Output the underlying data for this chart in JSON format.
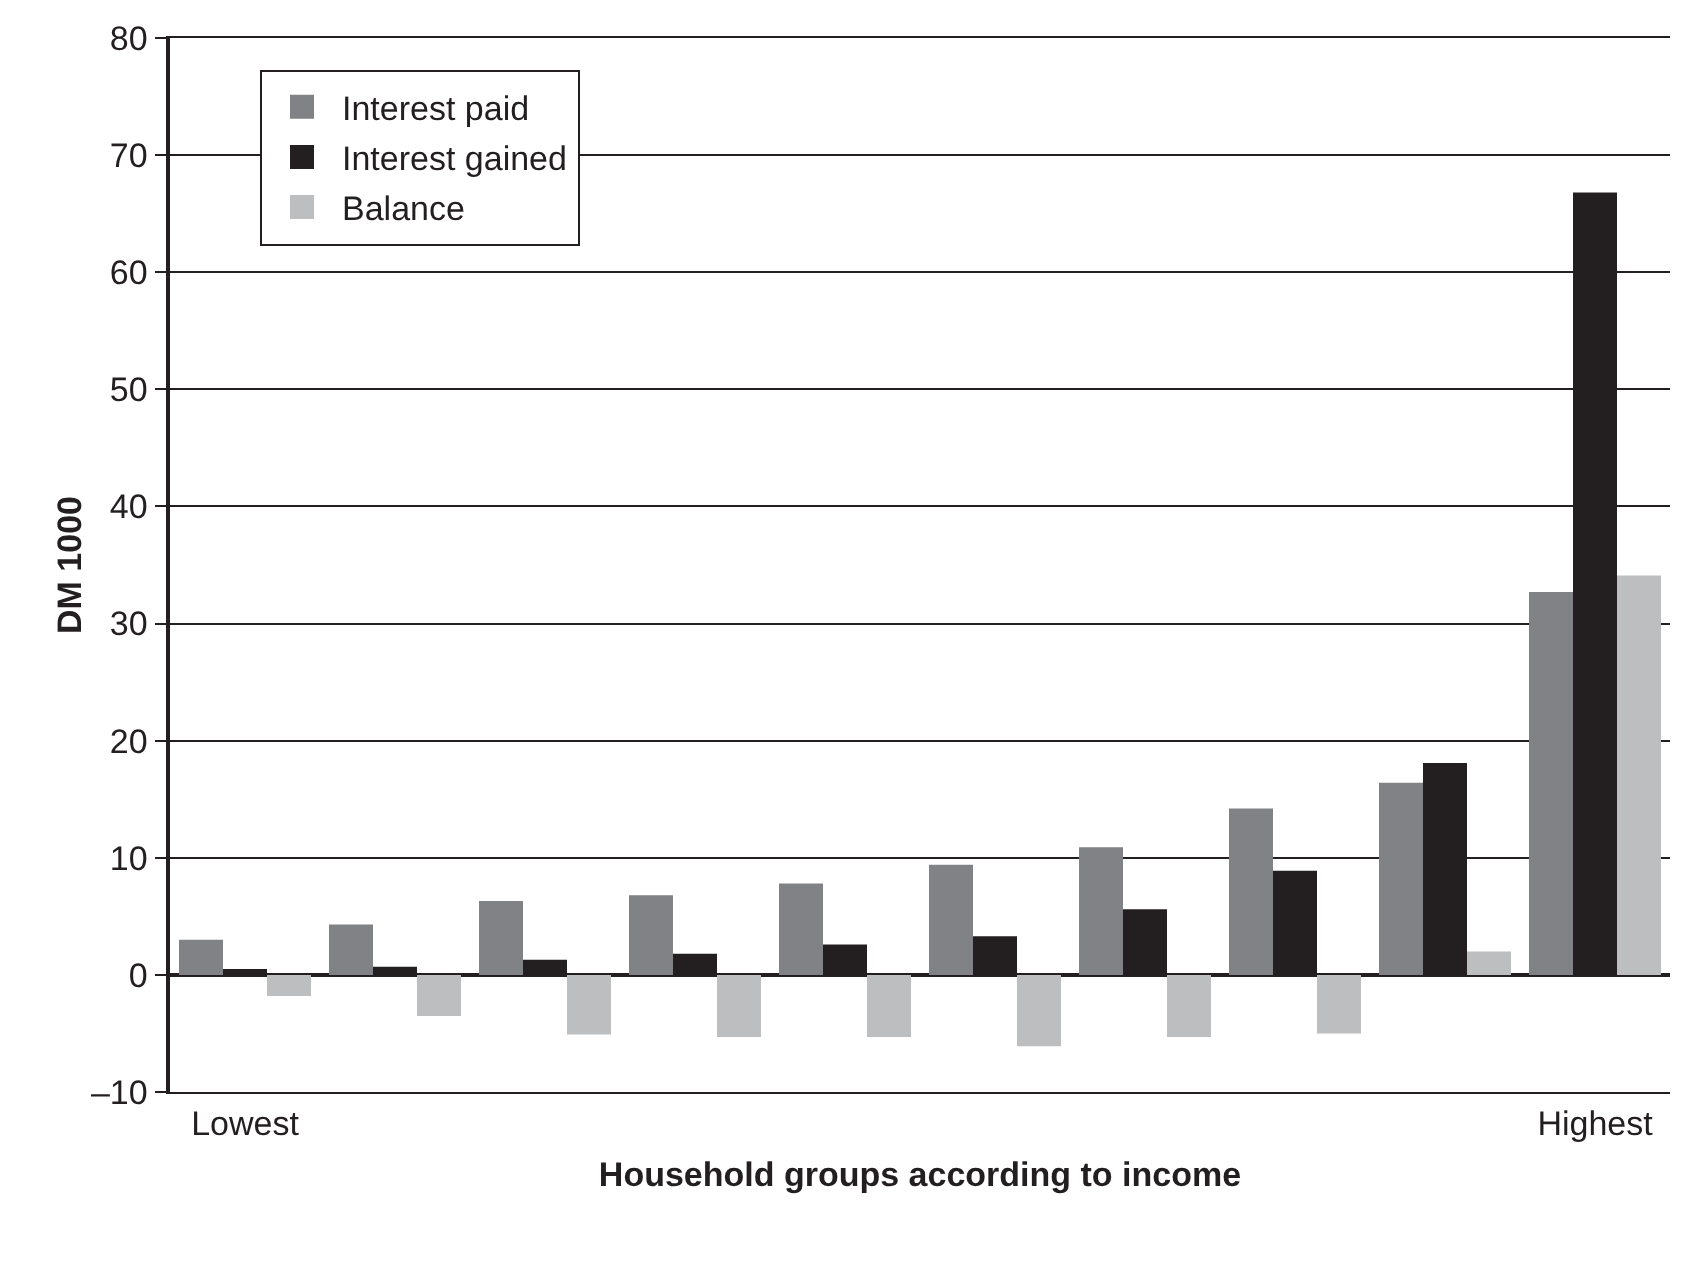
{
  "chart_data": {
    "type": "bar",
    "xlabel": "Household groups according to income",
    "ylabel": "DM 1000",
    "categories": [
      "Lowest",
      null,
      null,
      null,
      null,
      null,
      null,
      null,
      null,
      "Highest"
    ],
    "series": [
      {
        "name": "Interest paid",
        "color": "#808285",
        "values": [
          3.0,
          4.3,
          6.3,
          6.8,
          7.8,
          9.4,
          10.9,
          14.2,
          16.4,
          32.7
        ]
      },
      {
        "name": "Interest gained",
        "color": "#231f20",
        "values": [
          0.5,
          0.7,
          1.3,
          1.8,
          2.6,
          3.3,
          5.6,
          8.9,
          18.1,
          66.8
        ]
      },
      {
        "name": "Balance",
        "color": "#bcbec0",
        "values": [
          -1.8,
          -3.5,
          -5.1,
          -5.3,
          -5.3,
          -6.1,
          -5.3,
          -5.0,
          2.0,
          34.1
        ]
      }
    ],
    "ylim": [
      -10,
      80
    ],
    "yticks": [
      {
        "value": -10,
        "label": "–10"
      },
      0,
      10,
      20,
      30,
      40,
      50,
      60,
      70,
      80
    ],
    "grid": "y",
    "legend": "top left"
  }
}
